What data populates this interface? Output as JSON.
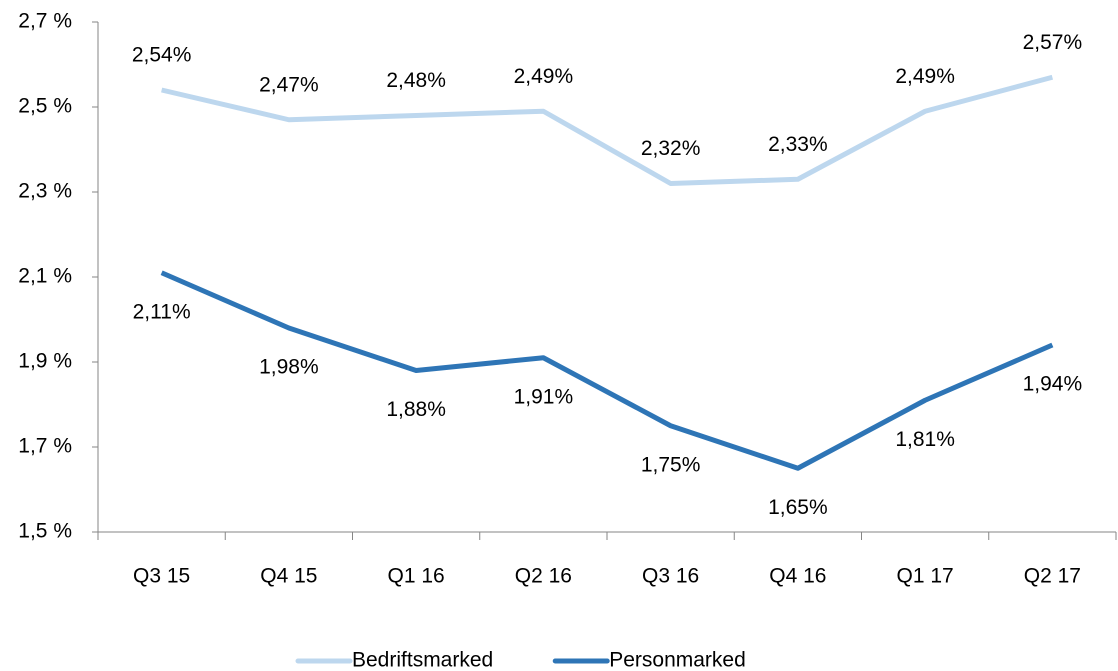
{
  "chart_data": {
    "type": "line",
    "categories": [
      "Q3 15",
      "Q4 15",
      "Q1 16",
      "Q2 16",
      "Q3 16",
      "Q4 16",
      "Q1 17",
      "Q2 17"
    ],
    "series": [
      {
        "name": "Bedriftsmarked",
        "color": "#bdd7ee",
        "values": [
          2.54,
          2.47,
          2.48,
          2.49,
          2.32,
          2.33,
          2.49,
          2.57
        ],
        "value_labels": [
          "2,54%",
          "2,47%",
          "2,48%",
          "2,49%",
          "2,32%",
          "2,33%",
          "2,49%",
          "2,57%"
        ]
      },
      {
        "name": "Personmarked",
        "color": "#2e75b6",
        "values": [
          2.11,
          1.98,
          1.88,
          1.91,
          1.75,
          1.65,
          1.81,
          1.94
        ],
        "value_labels": [
          "2,11%",
          "1,98%",
          "1,88%",
          "1,91%",
          "1,75%",
          "1,65%",
          "1,81%",
          "1,94%"
        ]
      }
    ],
    "ylim": [
      1.5,
      2.7
    ],
    "yticks": [
      {
        "value": 1.5,
        "label": "1,5 %"
      },
      {
        "value": 1.7,
        "label": "1,7 %"
      },
      {
        "value": 1.9,
        "label": "1,9 %"
      },
      {
        "value": 2.1,
        "label": "2,1 %"
      },
      {
        "value": 2.3,
        "label": "2,3 %"
      },
      {
        "value": 2.5,
        "label": "2,5 %"
      },
      {
        "value": 2.7,
        "label": "2,7 %"
      }
    ],
    "grid": false,
    "legend": "bottom"
  }
}
